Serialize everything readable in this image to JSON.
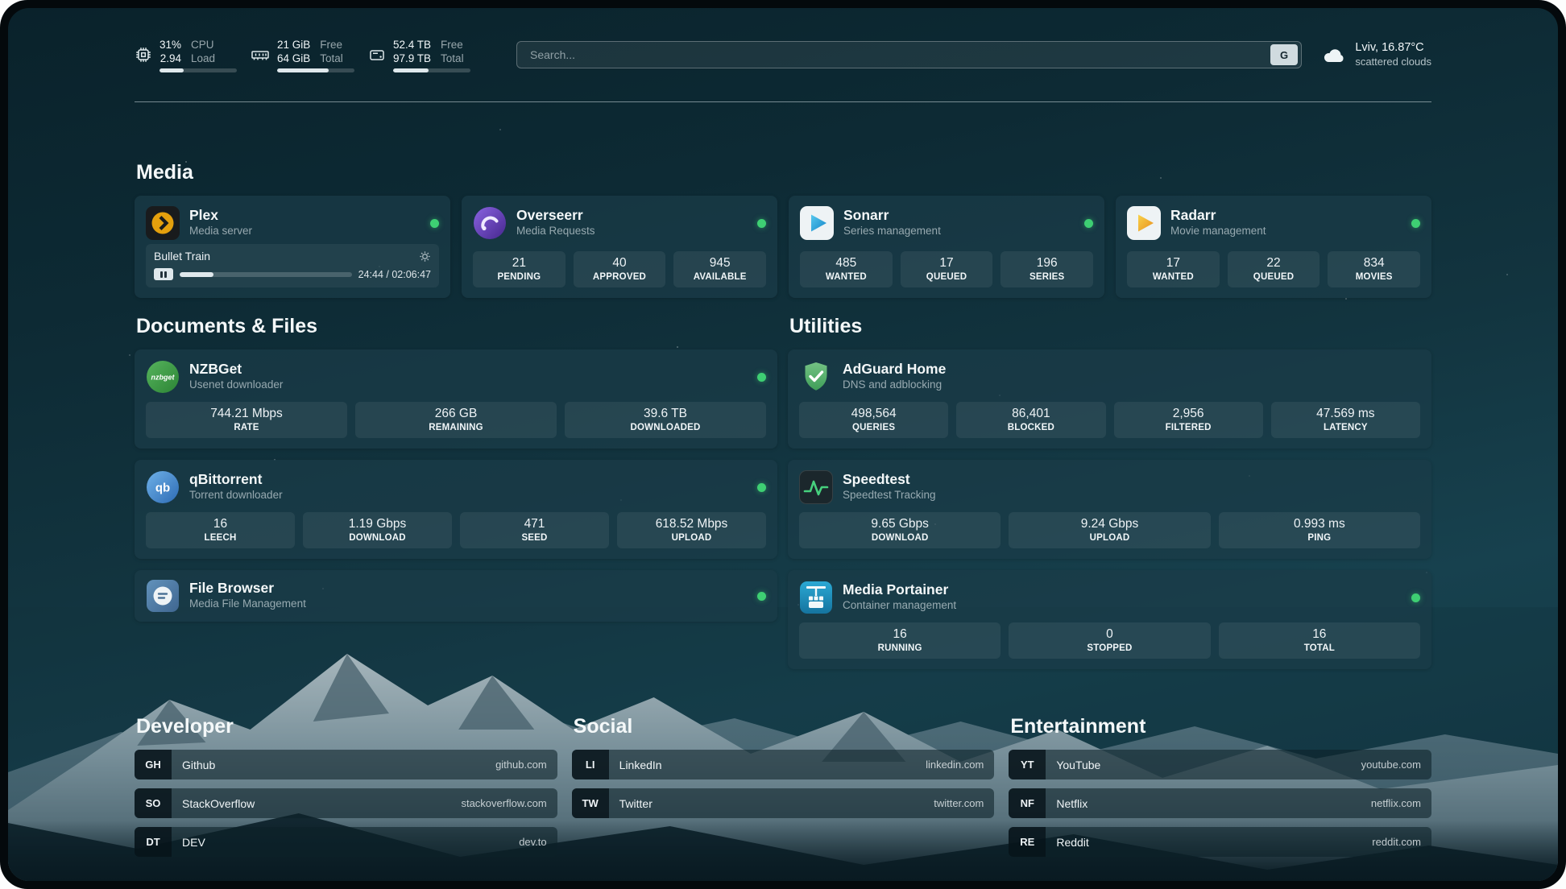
{
  "topbar": {
    "cpu": {
      "value": "31%",
      "load": "2.94",
      "label1": "CPU",
      "label2": "Load",
      "bar": 31
    },
    "memory": {
      "free": "21 GiB",
      "total": "64 GiB",
      "label1": "Free",
      "label2": "Total",
      "bar": 67
    },
    "disk": {
      "free": "52.4 TB",
      "total": "97.9 TB",
      "label1": "Free",
      "label2": "Total",
      "bar": 46
    },
    "search": {
      "placeholder": "Search...",
      "provider": "G"
    },
    "weather": {
      "location": "Lviv, 16.87°C",
      "condition": "scattered clouds"
    }
  },
  "media": {
    "title": "Media",
    "plex": {
      "title": "Plex",
      "subtitle": "Media server",
      "now_playing": {
        "name": "Bullet Train",
        "time": "24:44 / 02:06:47",
        "progress": 19.5
      }
    },
    "overseerr": {
      "title": "Overseerr",
      "subtitle": "Media Requests",
      "stats": [
        {
          "value": "21",
          "label": "PENDING"
        },
        {
          "value": "40",
          "label": "APPROVED"
        },
        {
          "value": "945",
          "label": "AVAILABLE"
        }
      ]
    },
    "sonarr": {
      "title": "Sonarr",
      "subtitle": "Series management",
      "stats": [
        {
          "value": "485",
          "label": "WANTED"
        },
        {
          "value": "17",
          "label": "QUEUED"
        },
        {
          "value": "196",
          "label": "SERIES"
        }
      ]
    },
    "radarr": {
      "title": "Radarr",
      "subtitle": "Movie management",
      "stats": [
        {
          "value": "17",
          "label": "WANTED"
        },
        {
          "value": "22",
          "label": "QUEUED"
        },
        {
          "value": "834",
          "label": "MOVIES"
        }
      ]
    }
  },
  "documents": {
    "title": "Documents & Files",
    "nzbget": {
      "title": "NZBGet",
      "subtitle": "Usenet downloader",
      "icon_text": "nzbget",
      "stats": [
        {
          "value": "744.21 Mbps",
          "label": "RATE"
        },
        {
          "value": "266 GB",
          "label": "REMAINING"
        },
        {
          "value": "39.6 TB",
          "label": "DOWNLOADED"
        }
      ]
    },
    "qbittorrent": {
      "title": "qBittorrent",
      "subtitle": "Torrent downloader",
      "icon_text": "qb",
      "stats": [
        {
          "value": "16",
          "label": "LEECH"
        },
        {
          "value": "1.19 Gbps",
          "label": "DOWNLOAD"
        },
        {
          "value": "471",
          "label": "SEED"
        },
        {
          "value": "618.52 Mbps",
          "label": "UPLOAD"
        }
      ]
    },
    "filebrowser": {
      "title": "File Browser",
      "subtitle": "Media File Management"
    }
  },
  "utilities": {
    "title": "Utilities",
    "adguard": {
      "title": "AdGuard Home",
      "subtitle": "DNS and adblocking",
      "stats": [
        {
          "value": "498,564",
          "label": "QUERIES"
        },
        {
          "value": "86,401",
          "label": "BLOCKED"
        },
        {
          "value": "2,956",
          "label": "FILTERED"
        },
        {
          "value": "47.569 ms",
          "label": "LATENCY"
        }
      ]
    },
    "speedtest": {
      "title": "Speedtest",
      "subtitle": "Speedtest Tracking",
      "stats": [
        {
          "value": "9.65 Gbps",
          "label": "DOWNLOAD"
        },
        {
          "value": "9.24 Gbps",
          "label": "UPLOAD"
        },
        {
          "value": "0.993 ms",
          "label": "PING"
        }
      ]
    },
    "portainer": {
      "title": "Media Portainer",
      "subtitle": "Container management",
      "stats": [
        {
          "value": "16",
          "label": "RUNNING"
        },
        {
          "value": "0",
          "label": "STOPPED"
        },
        {
          "value": "16",
          "label": "TOTAL"
        }
      ]
    }
  },
  "bookmarks": {
    "developer": {
      "title": "Developer",
      "items": [
        {
          "abbr": "GH",
          "name": "Github",
          "domain": "github.com"
        },
        {
          "abbr": "SO",
          "name": "StackOverflow",
          "domain": "stackoverflow.com"
        },
        {
          "abbr": "DT",
          "name": "DEV",
          "domain": "dev.to"
        }
      ]
    },
    "social": {
      "title": "Social",
      "items": [
        {
          "abbr": "LI",
          "name": "LinkedIn",
          "domain": "linkedin.com"
        },
        {
          "abbr": "TW",
          "name": "Twitter",
          "domain": "twitter.com"
        }
      ]
    },
    "entertainment": {
      "title": "Entertainment",
      "items": [
        {
          "abbr": "YT",
          "name": "YouTube",
          "domain": "youtube.com"
        },
        {
          "abbr": "NF",
          "name": "Netflix",
          "domain": "netflix.com"
        },
        {
          "abbr": "RE",
          "name": "Reddit",
          "domain": "reddit.com"
        }
      ]
    }
  },
  "colors": {
    "status_online": "#3ecf73",
    "plex_amber": "#e5a00d",
    "adguard_green": "#5cb46f",
    "speedtest_pulse": "#46d17e"
  }
}
